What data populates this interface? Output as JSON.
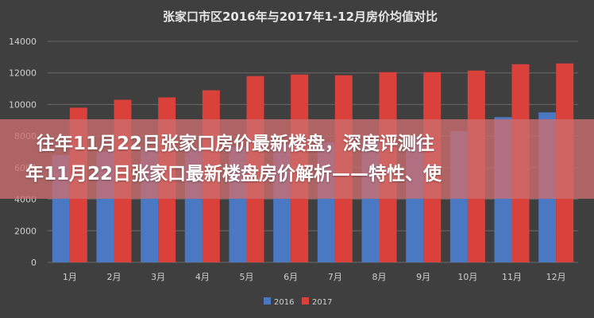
{
  "chart_data": {
    "type": "bar",
    "title": "张家口市区2016年与2017年1-12月房价均值对比",
    "categories": [
      "1月",
      "2月",
      "3月",
      "4月",
      "5月",
      "6月",
      "7月",
      "8月",
      "9月",
      "10月",
      "11月",
      "12月"
    ],
    "series": [
      {
        "name": "2016",
        "color": "#4a78c2",
        "values": [
          6800,
          7000,
          7100,
          7200,
          7300,
          7500,
          7600,
          7700,
          7900,
          8300,
          9200,
          9500
        ]
      },
      {
        "name": "2017",
        "color": "#d9413a",
        "values": [
          9800,
          10300,
          10450,
          10900,
          11800,
          11900,
          11850,
          12050,
          12050,
          12150,
          12550,
          12600
        ]
      }
    ],
    "yticks": [
      "0",
      "2000",
      "4000",
      "6000",
      "8000",
      "10000",
      "12000",
      "14000"
    ],
    "ylim": [
      0,
      14000
    ],
    "grid": true,
    "legend": "bottom"
  },
  "overlay": {
    "line1": "往年11月22日张家口房价最新楼盘，深度评测往",
    "line2": "年11月22日张家口最新楼盘房价解析——特性、使"
  },
  "colors": {
    "background": "#3f3f3f",
    "banner": "#cd6e6e",
    "text": "#ffffff"
  }
}
